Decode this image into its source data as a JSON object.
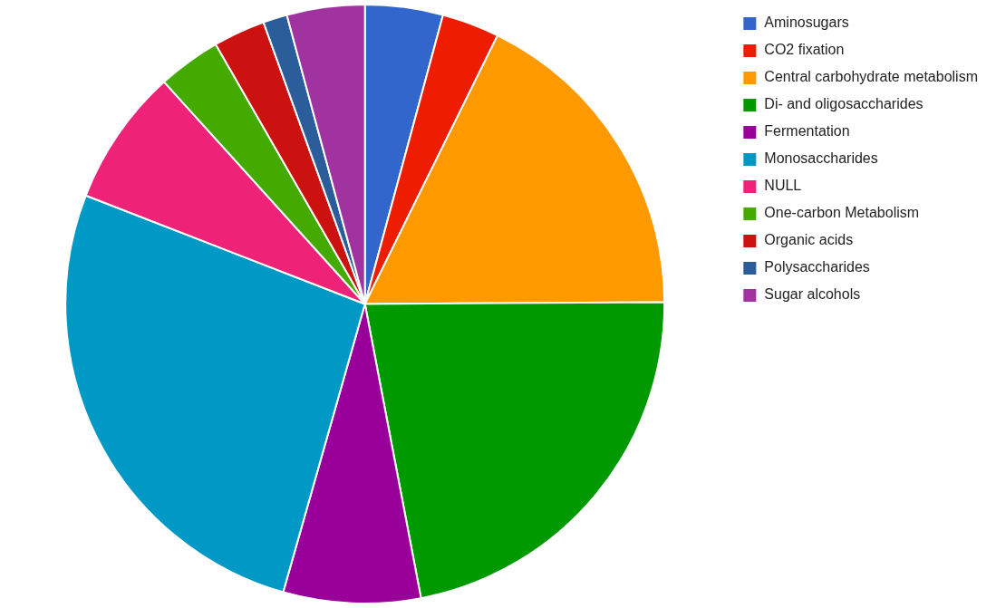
{
  "chart_data": {
    "type": "pie",
    "categories": [
      "Aminosugars",
      "CO2 fixation",
      "Central carbohydrate metabolism",
      "Di- and oligosaccharides",
      "Fermentation",
      "Monosaccharides",
      "NULL",
      "One-carbon Metabolism",
      "Organic acids",
      "Polysaccharides",
      "Sugar alcohols"
    ],
    "values": [
      4.2,
      3.1,
      17.6,
      22.1,
      7.4,
      26.5,
      7.4,
      3.4,
      2.8,
      1.3,
      4.2
    ],
    "colors": [
      "#3366cc",
      "#ee1c00",
      "#ff9900",
      "#009900",
      "#990099",
      "#0099c6",
      "#ee2277",
      "#44aa00",
      "#cc1111",
      "#2a5d9a",
      "#a033a0"
    ],
    "legend": "right"
  }
}
